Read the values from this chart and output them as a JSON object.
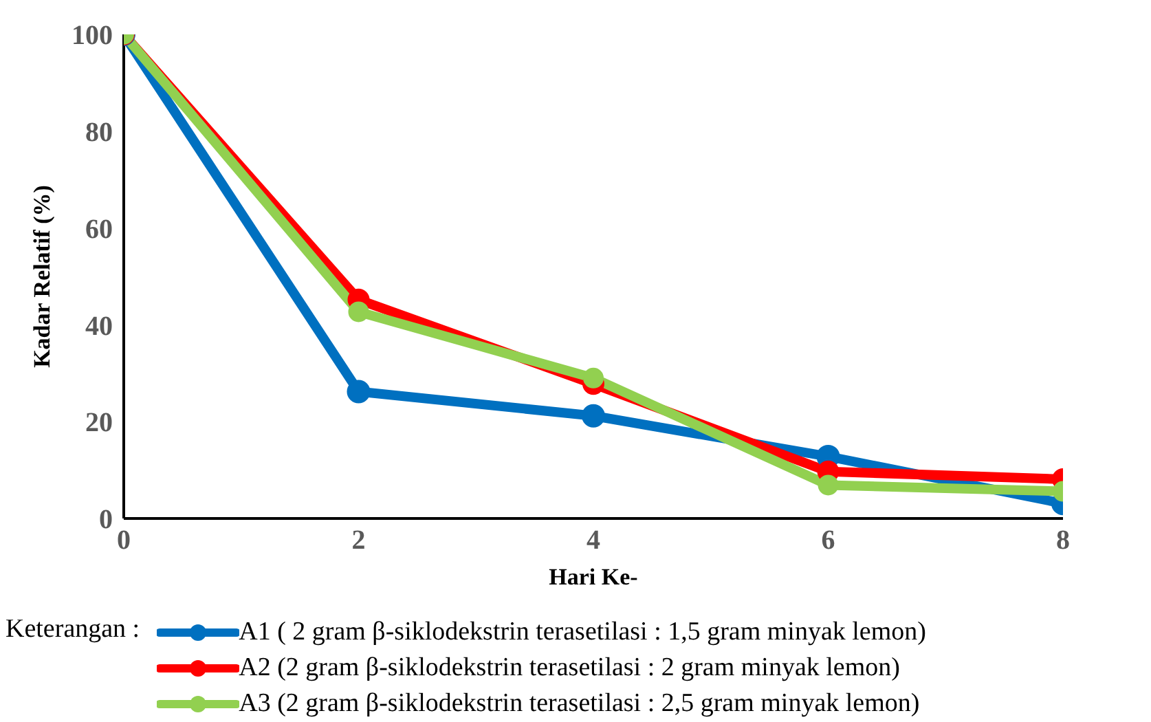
{
  "chart_data": {
    "type": "line",
    "xlabel": "Hari Ke-",
    "ylabel": "Kadar Relatif (%)",
    "legend_title": "Keterangan :",
    "x": [
      0,
      2,
      4,
      6,
      8
    ],
    "xlim": [
      0,
      8
    ],
    "xticks": [
      0,
      2,
      4,
      6,
      8
    ],
    "ylim": [
      0,
      100
    ],
    "yticks": [
      0,
      20,
      40,
      60,
      80,
      100
    ],
    "grid": false,
    "legend": "bottom",
    "marker": "circle",
    "line_style": "solid",
    "series": [
      {
        "name": "A1 ( 2 gram β-siklodekstrin terasetilasi : 1,5 gram minyak lemon)",
        "color": "#0070c0",
        "values": [
          100,
          26.2,
          21.2,
          12.8,
          3.1
        ]
      },
      {
        "name": "A2 (2 gram β-siklodekstrin terasetilasi : 2 gram minyak lemon)",
        "color": "#ff0000",
        "values": [
          100,
          45.2,
          27.8,
          9.7,
          8.1
        ]
      },
      {
        "name": "A3 (2 gram β-siklodekstrin terasetilasi : 2,5 gram minyak lemon)",
        "color": "#92d050",
        "values": [
          100,
          42.7,
          29,
          6.9,
          5.6
        ]
      }
    ]
  }
}
